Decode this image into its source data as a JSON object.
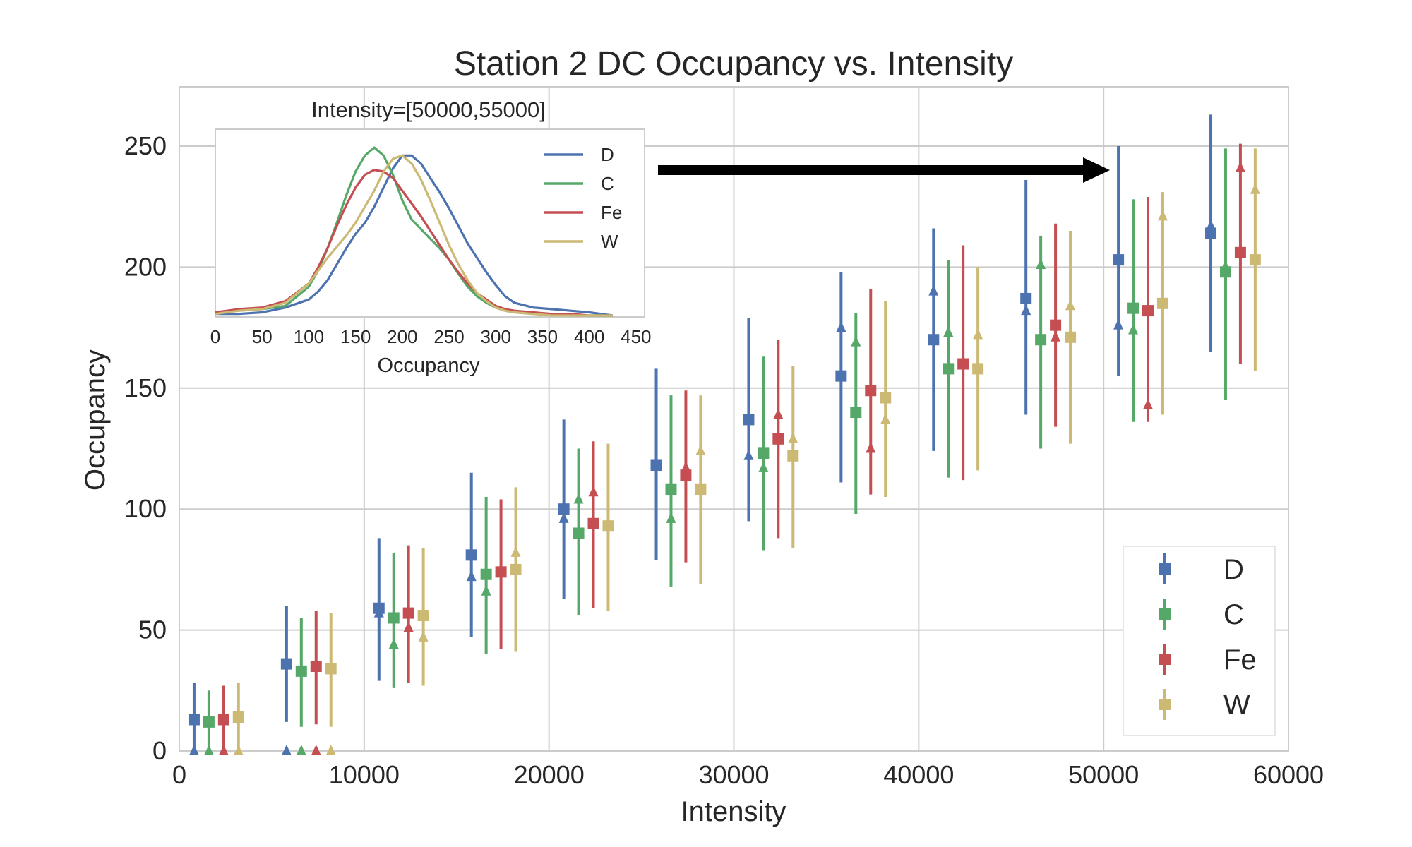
{
  "colors": {
    "D": "#4c72b0",
    "C": "#55a868",
    "Fe": "#c44e52",
    "W": "#ccb974",
    "grid": "#cccccc",
    "frame": "#cccccc",
    "text": "#262626"
  },
  "chart_data": [
    {
      "type": "errorbar",
      "title": "Station 2 DC Occupancy vs. Intensity",
      "xlabel": "Intensity",
      "ylabel": "Occupancy",
      "xlim": [
        0,
        60000
      ],
      "ylim": [
        0,
        275
      ],
      "xticks": [
        "0",
        "10000",
        "20000",
        "30000",
        "40000",
        "50000",
        "60000"
      ],
      "yticks": [
        "0",
        "50",
        "100",
        "150",
        "200",
        "250"
      ],
      "grid": true,
      "legend": {
        "position": "bottom-right",
        "entries": [
          "D",
          "C",
          "Fe",
          "W"
        ]
      },
      "series": [
        {
          "name": "D",
          "x": [
            800,
            5800,
            10800,
            15800,
            20800,
            25800,
            30800,
            35800,
            40800,
            45800,
            50800,
            55800
          ],
          "mean": [
            13,
            36,
            59,
            81,
            100,
            118,
            137,
            155,
            170,
            187,
            203,
            214
          ],
          "lower": [
            0,
            12,
            29,
            47,
            63,
            79,
            95,
            111,
            124,
            139,
            155,
            165
          ],
          "upper": [
            28,
            60,
            88,
            115,
            137,
            158,
            179,
            198,
            216,
            236,
            250,
            263
          ],
          "median": [
            0,
            0,
            57,
            72,
            96,
            118,
            122,
            175,
            190,
            182,
            176,
            217
          ]
        },
        {
          "name": "C",
          "x": [
            1600,
            6600,
            11600,
            16600,
            21600,
            26600,
            31600,
            36600,
            41600,
            46600,
            51600,
            56600
          ],
          "mean": [
            12,
            33,
            55,
            73,
            90,
            108,
            123,
            140,
            158,
            170,
            183,
            198
          ],
          "lower": [
            0,
            10,
            26,
            40,
            56,
            68,
            83,
            98,
            113,
            125,
            136,
            145
          ],
          "upper": [
            25,
            55,
            82,
            105,
            125,
            147,
            163,
            181,
            203,
            213,
            228,
            249
          ],
          "median": [
            0,
            0,
            44,
            66,
            104,
            96,
            117,
            169,
            173,
            201,
            174,
            200
          ]
        },
        {
          "name": "Fe",
          "x": [
            2400,
            7400,
            12400,
            17400,
            22400,
            27400,
            32400,
            37400,
            42400,
            47400,
            52400,
            57400
          ],
          "mean": [
            13,
            35,
            57,
            74,
            94,
            114,
            129,
            149,
            160,
            176,
            182,
            206
          ],
          "lower": [
            0,
            11,
            28,
            42,
            59,
            78,
            88,
            106,
            112,
            134,
            136,
            160
          ],
          "upper": [
            27,
            58,
            85,
            104,
            128,
            149,
            170,
            191,
            209,
            218,
            229,
            251
          ],
          "median": [
            0,
            0,
            51,
            74,
            107,
            117,
            139,
            125,
            161,
            171,
            143,
            241
          ]
        },
        {
          "name": "W",
          "x": [
            3200,
            8200,
            13200,
            18200,
            23200,
            28200,
            33200,
            38200,
            43200,
            48200,
            53200,
            58200
          ],
          "mean": [
            14,
            34,
            56,
            75,
            93,
            108,
            122,
            146,
            158,
            171,
            185,
            203
          ],
          "lower": [
            0,
            10,
            27,
            41,
            58,
            69,
            84,
            105,
            116,
            127,
            139,
            157
          ],
          "upper": [
            28,
            57,
            84,
            109,
            127,
            147,
            159,
            186,
            200,
            215,
            231,
            249
          ],
          "median": [
            0,
            0,
            47,
            82,
            93,
            124,
            129,
            137,
            172,
            184,
            221,
            232
          ]
        }
      ]
    },
    {
      "type": "line",
      "title": "Intensity=[50000,55000]",
      "xlabel": "Occupancy",
      "ylabel": "",
      "xlim": [
        0,
        450
      ],
      "xticks": [
        "0",
        "50",
        "100",
        "150",
        "200",
        "250",
        "300",
        "350",
        "400",
        "450"
      ],
      "grid": false,
      "legend": {
        "position": "top-right",
        "entries": [
          "D",
          "C",
          "Fe",
          "W"
        ]
      },
      "x": [
        0,
        25,
        50,
        75,
        100,
        110,
        120,
        130,
        140,
        150,
        160,
        170,
        180,
        190,
        200,
        210,
        220,
        230,
        240,
        250,
        260,
        270,
        280,
        290,
        300,
        310,
        320,
        340,
        360,
        380,
        400,
        425
      ],
      "series": [
        {
          "name": "D",
          "values": [
            0.01,
            0.01,
            0.02,
            0.05,
            0.1,
            0.15,
            0.22,
            0.32,
            0.42,
            0.51,
            0.58,
            0.68,
            0.8,
            0.92,
            1.0,
            1.0,
            0.95,
            0.86,
            0.77,
            0.67,
            0.56,
            0.45,
            0.36,
            0.27,
            0.19,
            0.12,
            0.08,
            0.05,
            0.04,
            0.03,
            0.02,
            0.0
          ]
        },
        {
          "name": "C",
          "values": [
            0.02,
            0.03,
            0.04,
            0.06,
            0.18,
            0.28,
            0.42,
            0.58,
            0.75,
            0.9,
            1.0,
            1.05,
            1.0,
            0.88,
            0.72,
            0.6,
            0.54,
            0.48,
            0.42,
            0.35,
            0.26,
            0.18,
            0.12,
            0.08,
            0.05,
            0.03,
            0.02,
            0.01,
            0.01,
            0.0,
            0.0,
            0.0
          ]
        },
        {
          "name": "Fe",
          "values": [
            0.02,
            0.04,
            0.05,
            0.09,
            0.2,
            0.3,
            0.42,
            0.56,
            0.69,
            0.8,
            0.88,
            0.91,
            0.9,
            0.86,
            0.78,
            0.7,
            0.62,
            0.53,
            0.44,
            0.35,
            0.27,
            0.2,
            0.14,
            0.1,
            0.06,
            0.04,
            0.03,
            0.02,
            0.01,
            0.01,
            0.0,
            0.0
          ]
        },
        {
          "name": "W",
          "values": [
            0.01,
            0.03,
            0.04,
            0.08,
            0.2,
            0.28,
            0.36,
            0.43,
            0.5,
            0.58,
            0.68,
            0.78,
            0.9,
            0.98,
            1.0,
            0.95,
            0.85,
            0.72,
            0.58,
            0.44,
            0.32,
            0.22,
            0.14,
            0.09,
            0.05,
            0.03,
            0.02,
            0.01,
            0.0,
            0.0,
            0.0,
            0.0
          ]
        }
      ]
    }
  ]
}
